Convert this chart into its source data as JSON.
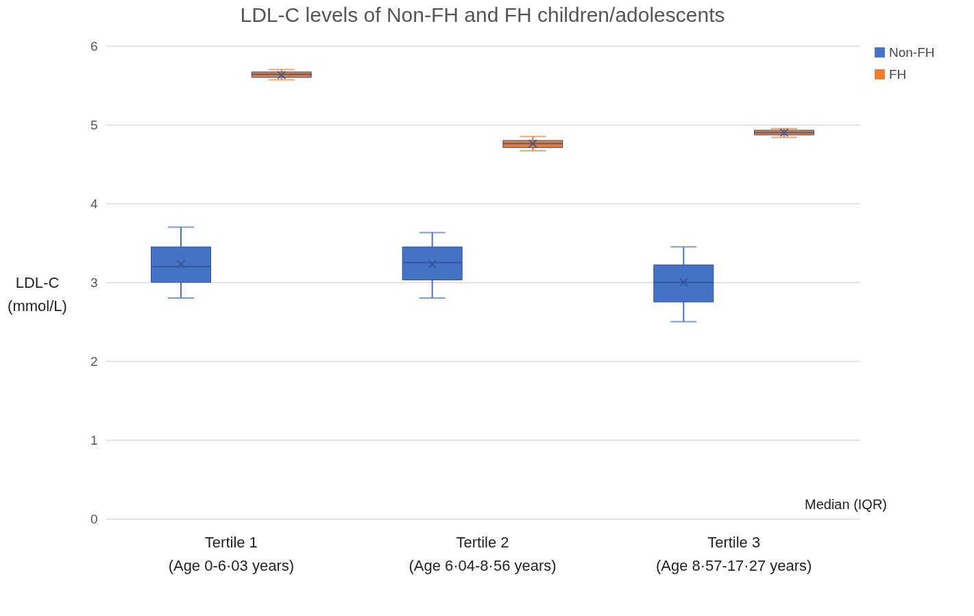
{
  "chart_data": {
    "type": "box",
    "title": "LDL-C levels of Non-FH and FH children/adolescents",
    "ylabel": "LDL-C\n(mmol/L)",
    "categories": [
      "Tertile 1\n(Age 0-6·03 years)",
      "Tertile 2\n(Age 6·04-8·56 years)",
      "Tertile 3\n(Age 8·57-17·27 years)"
    ],
    "series": [
      {
        "name": "Non-FH",
        "color": "#4472c4",
        "boxes": [
          {
            "low": 2.8,
            "q1": 3.0,
            "median": 3.2,
            "q3": 3.45,
            "high": 3.7,
            "mean": 3.23
          },
          {
            "low": 2.8,
            "q1": 3.03,
            "median": 3.25,
            "q3": 3.45,
            "high": 3.63,
            "mean": 3.23
          },
          {
            "low": 2.5,
            "q1": 2.75,
            "median": 3.0,
            "q3": 3.22,
            "high": 3.45,
            "mean": 3.0
          }
        ]
      },
      {
        "name": "FH",
        "color": "#ed7d31",
        "boxes": [
          {
            "low": 5.57,
            "q1": 5.6,
            "median": 5.64,
            "q3": 5.67,
            "high": 5.7,
            "mean": 5.63
          },
          {
            "low": 4.67,
            "q1": 4.71,
            "median": 4.76,
            "q3": 4.8,
            "high": 4.85,
            "mean": 4.76
          },
          {
            "low": 4.84,
            "q1": 4.87,
            "median": 4.9,
            "q3": 4.93,
            "high": 4.95,
            "mean": 4.9
          }
        ]
      }
    ],
    "ylim": [
      0,
      6
    ],
    "yticks": [
      0,
      1,
      2,
      3,
      4,
      5,
      6
    ],
    "grid": "y",
    "legend": "right",
    "annotations": [
      "Median (IQR)"
    ]
  }
}
